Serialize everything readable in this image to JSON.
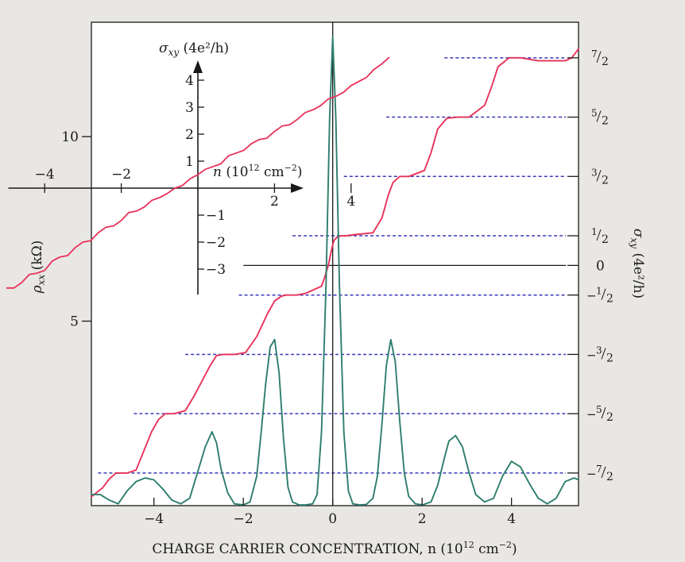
{
  "chart_data": {
    "type": "line",
    "xlabel": "CHARGE CARRIER CONCENTRATION, n (10",
    "xlabel_sup": "12",
    "xlabel_unit": " cm",
    "xlabel_unit_sup": "−2",
    "xlabel_close": ")",
    "ylabel_left": "ρ",
    "ylabel_left_sub": "xx",
    "ylabel_left_unit": " (kΩ)",
    "ylabel_right": "σ",
    "ylabel_right_sub": "xy",
    "ylabel_right_unit": " (4e²/h)",
    "xlim": [
      -5.4,
      5.5
    ],
    "ylim_left": [
      0,
      13.1
    ],
    "ylim_right": [
      -4.05,
      4.1
    ],
    "x_ticks": [
      {
        "v": -4,
        "label": "−4"
      },
      {
        "v": -2,
        "label": "−2"
      },
      {
        "v": 0,
        "label": "0"
      },
      {
        "v": 2,
        "label": "2"
      },
      {
        "v": 4,
        "label": "4"
      }
    ],
    "y_left_ticks": [
      {
        "v": 5,
        "label": "5"
      },
      {
        "v": 10,
        "label": "10"
      }
    ],
    "y_right_ticks": [
      {
        "v": 3.5,
        "label": "7/2",
        "num": "7",
        "den": "2",
        "neg": false
      },
      {
        "v": 2.5,
        "label": "5/2",
        "num": "5",
        "den": "2",
        "neg": false
      },
      {
        "v": 1.5,
        "label": "3/2",
        "num": "3",
        "den": "2",
        "neg": false
      },
      {
        "v": 0.5,
        "label": "1/2",
        "num": "1",
        "den": "2",
        "neg": false
      },
      {
        "v": 0,
        "label": "0",
        "num": "0",
        "den": "",
        "neg": false
      },
      {
        "v": -0.5,
        "label": "−1/2",
        "num": "1",
        "den": "2",
        "neg": true
      },
      {
        "v": -1.5,
        "label": "−3/2",
        "num": "3",
        "den": "2",
        "neg": true
      },
      {
        "v": -2.5,
        "label": "−5/2",
        "num": "5",
        "den": "2",
        "neg": true
      },
      {
        "v": -3.5,
        "label": "−7/2",
        "num": "7",
        "den": "2",
        "neg": true
      }
    ],
    "plateaus": [
      {
        "level": 3.5,
        "x_start": 2.5
      },
      {
        "level": 2.5,
        "x_start": 1.2
      },
      {
        "level": 1.5,
        "x_start": 0.25
      },
      {
        "level": 0.5,
        "x_start": -0.9
      },
      {
        "level": 0,
        "x_start": -2.0
      },
      {
        "level": -0.5,
        "x_start": -2.1
      },
      {
        "level": -1.5,
        "x_start": -3.3
      },
      {
        "level": -2.5,
        "x_start": -4.45
      },
      {
        "level": -3.5,
        "x_start": -5.25
      }
    ],
    "series": [
      {
        "color": "#e8325a",
        "axis": "right",
        "x": [
          -5.4,
          -5.15,
          -5.0,
          -4.85,
          -4.6,
          -4.4,
          -4.05,
          -3.9,
          -3.75,
          -3.55,
          -3.3,
          -3.1,
          -2.75,
          -2.6,
          -2.45,
          -2.2,
          -1.95,
          -1.7,
          -1.45,
          -1.3,
          -1.15,
          -1.05,
          -0.8,
          -0.6,
          -0.25,
          -0.18,
          -0.1,
          -0.03,
          0.0,
          0.03,
          0.1,
          0.2,
          0.3,
          0.5,
          0.9,
          1.1,
          1.25,
          1.35,
          1.5,
          1.7,
          2.05,
          2.2,
          2.35,
          2.55,
          2.8,
          3.05,
          3.4,
          3.55,
          3.7,
          3.95,
          4.2,
          4.6,
          4.9,
          5.2,
          5.35,
          5.5
        ],
        "y": [
          -3.9,
          -3.75,
          -3.6,
          -3.5,
          -3.5,
          -3.45,
          -2.8,
          -2.6,
          -2.5,
          -2.5,
          -2.45,
          -2.2,
          -1.7,
          -1.52,
          -1.5,
          -1.5,
          -1.47,
          -1.2,
          -0.8,
          -0.6,
          -0.52,
          -0.5,
          -0.5,
          -0.47,
          -0.35,
          -0.2,
          0.0,
          0.25,
          0.35,
          0.42,
          0.48,
          0.5,
          0.5,
          0.52,
          0.55,
          0.8,
          1.2,
          1.4,
          1.5,
          1.5,
          1.6,
          1.9,
          2.3,
          2.48,
          2.5,
          2.5,
          2.7,
          3.0,
          3.35,
          3.5,
          3.5,
          3.45,
          3.45,
          3.45,
          3.5,
          3.65
        ]
      },
      {
        "color": "#2e7d6e",
        "axis": "left",
        "x": [
          -5.4,
          -5.2,
          -5.0,
          -4.8,
          -4.6,
          -4.4,
          -4.2,
          -4.0,
          -3.8,
          -3.6,
          -3.4,
          -3.2,
          -3.0,
          -2.85,
          -2.7,
          -2.6,
          -2.5,
          -2.35,
          -2.2,
          -2.0,
          -1.85,
          -1.7,
          -1.6,
          -1.5,
          -1.4,
          -1.3,
          -1.2,
          -1.1,
          -1.0,
          -0.9,
          -0.75,
          -0.6,
          -0.45,
          -0.35,
          -0.25,
          -0.15,
          -0.07,
          0.0,
          0.07,
          0.15,
          0.25,
          0.35,
          0.45,
          0.6,
          0.75,
          0.9,
          1.0,
          1.1,
          1.2,
          1.3,
          1.4,
          1.5,
          1.6,
          1.7,
          1.85,
          2.0,
          2.2,
          2.35,
          2.5,
          2.6,
          2.75,
          2.9,
          3.05,
          3.2,
          3.4,
          3.6,
          3.8,
          4.0,
          4.2,
          4.4,
          4.6,
          4.8,
          5.0,
          5.2,
          5.4,
          5.5
        ],
        "y": [
          0.3,
          0.3,
          0.15,
          0.05,
          0.4,
          0.65,
          0.75,
          0.7,
          0.45,
          0.15,
          0.05,
          0.2,
          1.0,
          1.6,
          2.0,
          1.7,
          1.0,
          0.35,
          0.05,
          0.02,
          0.1,
          0.8,
          2.0,
          3.3,
          4.3,
          4.5,
          3.6,
          1.8,
          0.5,
          0.1,
          0.02,
          0.02,
          0.05,
          0.3,
          2.0,
          6.0,
          10.5,
          12.7,
          10.5,
          6.0,
          2.0,
          0.4,
          0.05,
          0.02,
          0.03,
          0.2,
          0.8,
          2.2,
          3.8,
          4.5,
          3.9,
          2.3,
          0.9,
          0.25,
          0.05,
          0.02,
          0.1,
          0.55,
          1.3,
          1.75,
          1.9,
          1.6,
          0.9,
          0.3,
          0.1,
          0.2,
          0.8,
          1.2,
          1.05,
          0.6,
          0.2,
          0.05,
          0.2,
          0.65,
          0.75,
          0.7
        ]
      }
    ],
    "inset": {
      "ylabel": "σ",
      "ylabel_sub": "xy",
      "ylabel_unit": " (4e²/h)",
      "xlabel": "n",
      "xlabel_unit": " (10",
      "xlabel_sup": "12",
      "xlabel_cm": " cm",
      "xlabel_cm_sup": "−2",
      "xlabel_close": ")",
      "xlim": [
        -5.1,
        5.2
      ],
      "ylim": [
        -4.0,
        5.1
      ],
      "x_ticks": [
        {
          "v": -4,
          "label": "−4"
        },
        {
          "v": -2,
          "label": "−2"
        },
        {
          "v": 2,
          "label": "2"
        },
        {
          "v": 4,
          "label": "4"
        }
      ],
      "y_ticks": [
        {
          "v": 4,
          "label": "4"
        },
        {
          "v": 3,
          "label": "3"
        },
        {
          "v": 2,
          "label": "2"
        },
        {
          "v": 1,
          "label": "1"
        },
        {
          "v": -1,
          "label": "−1"
        },
        {
          "v": -2,
          "label": "−2"
        },
        {
          "v": -3,
          "label": "−3"
        }
      ],
      "series": {
        "color": "#e8325a",
        "x": [
          -5.0,
          -4.8,
          -4.6,
          -4.4,
          -4.2,
          -4.0,
          -3.8,
          -3.6,
          -3.4,
          -3.2,
          -3.0,
          -2.8,
          -2.6,
          -2.4,
          -2.2,
          -2.0,
          -1.8,
          -1.6,
          -1.4,
          -1.2,
          -1.0,
          -0.8,
          -0.6,
          -0.4,
          -0.2,
          0.0,
          0.2,
          0.4,
          0.6,
          0.8,
          1.0,
          1.2,
          1.4,
          1.6,
          1.8,
          2.0,
          2.2,
          2.4,
          2.6,
          2.8,
          3.0,
          3.2,
          3.4,
          3.6,
          3.8,
          4.0,
          4.2,
          4.4,
          4.6,
          4.8,
          5.0
        ],
        "y": [
          -3.7,
          -3.7,
          -3.5,
          -3.2,
          -3.15,
          -3.05,
          -2.7,
          -2.55,
          -2.5,
          -2.2,
          -2.0,
          -1.95,
          -1.65,
          -1.45,
          -1.4,
          -1.2,
          -0.9,
          -0.85,
          -0.7,
          -0.45,
          -0.35,
          -0.2,
          0.0,
          0.1,
          0.35,
          0.5,
          0.7,
          0.8,
          0.9,
          1.2,
          1.3,
          1.4,
          1.65,
          1.8,
          1.85,
          2.1,
          2.3,
          2.35,
          2.55,
          2.8,
          2.9,
          3.05,
          3.3,
          3.4,
          3.55,
          3.8,
          3.95,
          4.1,
          4.4,
          4.6,
          4.85
        ]
      }
    }
  }
}
